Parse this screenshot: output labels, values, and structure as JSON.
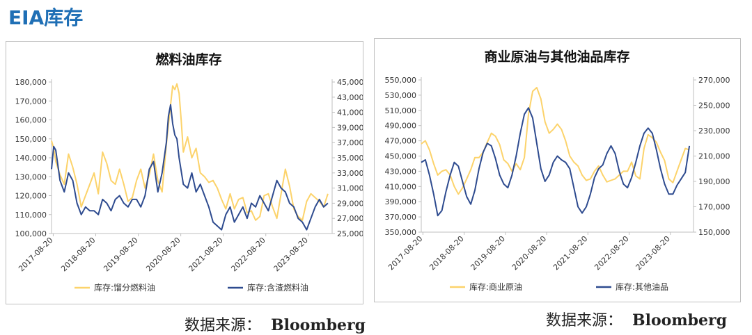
{
  "page": {
    "title": "EIA库存"
  },
  "source": {
    "label": "数据来源：",
    "brand": "Bloomberg"
  },
  "chart_data": [
    {
      "type": "line",
      "title": "燃料油库存",
      "x_ticks": [
        "2017-08-20",
        "2018-08-20",
        "2019-08-20",
        "2020-08-20",
        "2021-08-20",
        "2022-08-20",
        "2023-08-20"
      ],
      "y_left": {
        "ticks": [
          "100,000",
          "110,000",
          "120,000",
          "130,000",
          "140,000",
          "150,000",
          "160,000",
          "170,000",
          "180,000"
        ],
        "range": [
          100000,
          180000
        ]
      },
      "y_right": {
        "ticks": [
          "25,000",
          "27,000",
          "29,000",
          "31,000",
          "33,000",
          "35,000",
          "37,000",
          "39,000",
          "41,000",
          "43,000",
          "45,000"
        ],
        "range": [
          25000,
          45000
        ]
      },
      "grid": false,
      "legend_position": "bottom",
      "series": [
        {
          "name": "库存:馏分燃料油",
          "axis": "left",
          "color": "#fcd36b",
          "x": [
            2017.6,
            2017.65,
            2017.7,
            2017.8,
            2017.9,
            2018.0,
            2018.1,
            2018.2,
            2018.3,
            2018.4,
            2018.5,
            2018.6,
            2018.7,
            2018.8,
            2018.9,
            2019.0,
            2019.1,
            2019.2,
            2019.3,
            2019.4,
            2019.5,
            2019.6,
            2019.7,
            2019.8,
            2019.9,
            2020.0,
            2020.1,
            2020.2,
            2020.3,
            2020.4,
            2020.45,
            2020.5,
            2020.55,
            2020.6,
            2020.65,
            2020.7,
            2020.8,
            2020.9,
            2021.0,
            2021.1,
            2021.2,
            2021.3,
            2021.4,
            2021.5,
            2021.6,
            2021.7,
            2021.8,
            2021.9,
            2022.0,
            2022.1,
            2022.2,
            2022.3,
            2022.4,
            2022.5,
            2022.6,
            2022.7,
            2022.8,
            2022.9,
            2023.0,
            2023.1,
            2023.2,
            2023.3,
            2023.4,
            2023.5,
            2023.6,
            2023.7,
            2023.8,
            2023.9,
            2024.0,
            2024.1
          ],
          "y": [
            149000,
            145000,
            138000,
            131000,
            126000,
            142000,
            135000,
            126000,
            114000,
            120000,
            126000,
            132000,
            121000,
            143000,
            137000,
            128000,
            126000,
            134000,
            126000,
            117000,
            119000,
            128000,
            134000,
            124000,
            131000,
            142000,
            128000,
            122000,
            147000,
            168000,
            178000,
            176000,
            179000,
            174000,
            160000,
            143000,
            151000,
            140000,
            145000,
            132000,
            130000,
            127000,
            128000,
            124000,
            118000,
            113000,
            121000,
            113000,
            118000,
            119000,
            111000,
            112000,
            107000,
            109000,
            120000,
            121000,
            114000,
            108000,
            121000,
            134000,
            125000,
            113000,
            109000,
            107000,
            117000,
            121000,
            119000,
            117000,
            114000,
            121000
          ]
        },
        {
          "name": "库存:含渣燃料油",
          "axis": "right",
          "color": "#2e4b8f",
          "x": [
            2017.6,
            2017.65,
            2017.7,
            2017.8,
            2017.9,
            2018.0,
            2018.1,
            2018.2,
            2018.3,
            2018.4,
            2018.5,
            2018.6,
            2018.7,
            2018.8,
            2018.9,
            2019.0,
            2019.1,
            2019.2,
            2019.3,
            2019.4,
            2019.5,
            2019.6,
            2019.7,
            2019.8,
            2019.9,
            2020.0,
            2020.1,
            2020.2,
            2020.3,
            2020.35,
            2020.4,
            2020.45,
            2020.5,
            2020.55,
            2020.6,
            2020.7,
            2020.8,
            2020.9,
            2021.0,
            2021.1,
            2021.2,
            2021.3,
            2021.4,
            2021.5,
            2021.6,
            2021.7,
            2021.8,
            2021.9,
            2022.0,
            2022.1,
            2022.2,
            2022.3,
            2022.4,
            2022.5,
            2022.6,
            2022.7,
            2022.8,
            2022.9,
            2023.0,
            2023.1,
            2023.2,
            2023.3,
            2023.4,
            2023.5,
            2023.6,
            2023.7,
            2023.8,
            2023.9,
            2024.0,
            2024.1
          ],
          "y": [
            33500,
            36500,
            36000,
            32000,
            30500,
            33000,
            32000,
            29000,
            27500,
            28500,
            28000,
            28000,
            27500,
            29500,
            29000,
            28000,
            29500,
            30000,
            29000,
            28500,
            29500,
            29500,
            28500,
            30000,
            33500,
            34500,
            30500,
            33000,
            37000,
            40500,
            42000,
            39500,
            38000,
            37500,
            35000,
            31500,
            31000,
            33000,
            30500,
            31500,
            30000,
            28500,
            26500,
            26000,
            25500,
            27500,
            28500,
            26500,
            27500,
            28500,
            27000,
            29000,
            28500,
            30000,
            29000,
            28000,
            30000,
            32000,
            31000,
            30500,
            29000,
            28500,
            27000,
            26500,
            25500,
            27000,
            28500,
            29500,
            28500,
            29000
          ]
        }
      ]
    },
    {
      "type": "line",
      "title": "商业原油与其他油品库存",
      "x_ticks": [
        "2017-08-20",
        "2018-08-20",
        "2019-08-20",
        "2020-08-20",
        "2021-08-20",
        "2022-08-20",
        "2023-08-20"
      ],
      "y_left": {
        "ticks": [
          "350,000",
          "370,000",
          "390,000",
          "410,000",
          "430,000",
          "450,000",
          "470,000",
          "490,000",
          "510,000",
          "530,000",
          "550,000"
        ],
        "range": [
          350000,
          550000
        ]
      },
      "y_right": {
        "ticks": [
          "150,000",
          "170,000",
          "190,000",
          "210,000",
          "230,000",
          "250,000",
          "270,000"
        ],
        "range": [
          150000,
          270000
        ]
      },
      "grid": false,
      "legend_position": "bottom",
      "series": [
        {
          "name": "库存:商业原油",
          "axis": "left",
          "color": "#fcd36b",
          "x": [
            2017.6,
            2017.7,
            2017.8,
            2017.9,
            2018.0,
            2018.1,
            2018.2,
            2018.3,
            2018.4,
            2018.5,
            2018.6,
            2018.7,
            2018.8,
            2018.9,
            2019.0,
            2019.1,
            2019.2,
            2019.3,
            2019.4,
            2019.5,
            2019.6,
            2019.7,
            2019.8,
            2019.9,
            2020.0,
            2020.1,
            2020.2,
            2020.3,
            2020.4,
            2020.5,
            2020.6,
            2020.7,
            2020.8,
            2020.9,
            2021.0,
            2021.1,
            2021.2,
            2021.3,
            2021.4,
            2021.5,
            2021.6,
            2021.7,
            2021.8,
            2021.9,
            2022.0,
            2022.1,
            2022.2,
            2022.3,
            2022.4,
            2022.5,
            2022.6,
            2022.7,
            2022.8,
            2022.9,
            2023.0,
            2023.1,
            2023.2,
            2023.3,
            2023.4,
            2023.5,
            2023.6,
            2023.7,
            2023.8,
            2023.9,
            2024.0,
            2024.1
          ],
          "y": [
            466000,
            470000,
            458000,
            440000,
            425000,
            430000,
            432000,
            425000,
            410000,
            400000,
            408000,
            420000,
            432000,
            448000,
            448000,
            455000,
            468000,
            480000,
            476000,
            465000,
            445000,
            440000,
            430000,
            440000,
            432000,
            448000,
            505000,
            535000,
            540000,
            525000,
            495000,
            480000,
            485000,
            492000,
            485000,
            470000,
            450000,
            442000,
            437000,
            425000,
            418000,
            420000,
            430000,
            437000,
            425000,
            416000,
            418000,
            420000,
            425000,
            430000,
            430000,
            442000,
            424000,
            420000,
            460000,
            478000,
            474000,
            468000,
            455000,
            444000,
            420000,
            415000,
            430000,
            445000,
            460000,
            458000
          ]
        },
        {
          "name": "库存:其他油品",
          "axis": "right",
          "color": "#2e4b8f",
          "x": [
            2017.6,
            2017.7,
            2017.8,
            2017.9,
            2018.0,
            2018.1,
            2018.2,
            2018.3,
            2018.4,
            2018.5,
            2018.6,
            2018.7,
            2018.8,
            2018.9,
            2019.0,
            2019.1,
            2019.2,
            2019.3,
            2019.4,
            2019.5,
            2019.6,
            2019.7,
            2019.8,
            2019.9,
            2020.0,
            2020.1,
            2020.2,
            2020.3,
            2020.4,
            2020.5,
            2020.6,
            2020.7,
            2020.8,
            2020.9,
            2021.0,
            2021.1,
            2021.2,
            2021.3,
            2021.4,
            2021.5,
            2021.6,
            2021.7,
            2021.8,
            2021.9,
            2022.0,
            2022.1,
            2022.2,
            2022.3,
            2022.4,
            2022.5,
            2022.6,
            2022.7,
            2022.8,
            2022.9,
            2023.0,
            2023.1,
            2023.2,
            2023.3,
            2023.4,
            2023.5,
            2023.6,
            2023.7,
            2023.8,
            2023.9,
            2024.0,
            2024.1
          ],
          "y": [
            205000,
            207000,
            195000,
            180000,
            163000,
            167000,
            182000,
            195000,
            205000,
            202000,
            190000,
            178000,
            172000,
            183000,
            200000,
            213000,
            220000,
            218000,
            208000,
            195000,
            188000,
            185000,
            195000,
            210000,
            228000,
            243000,
            248000,
            240000,
            220000,
            200000,
            190000,
            195000,
            205000,
            210000,
            207000,
            205000,
            200000,
            185000,
            170000,
            165000,
            170000,
            180000,
            193000,
            200000,
            203000,
            212000,
            218000,
            212000,
            198000,
            188000,
            185000,
            193000,
            205000,
            218000,
            228000,
            232000,
            228000,
            215000,
            200000,
            188000,
            180000,
            180000,
            187000,
            192000,
            197000,
            218000
          ]
        }
      ]
    }
  ]
}
